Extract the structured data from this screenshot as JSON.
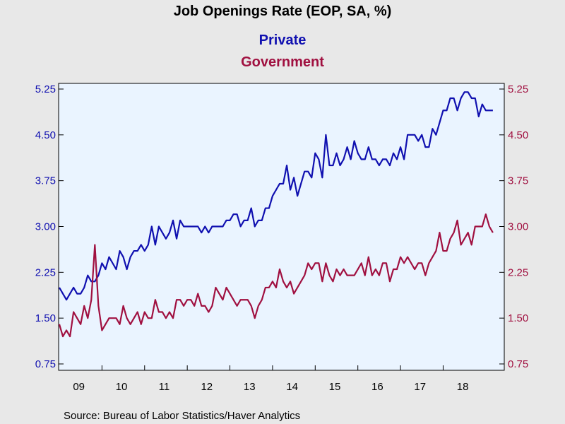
{
  "chart_data": {
    "type": "line",
    "title": "Job Openings Rate (EOP, SA, %)",
    "source": "Source:  Bureau of Labor Statistics/Haver Analytics",
    "x_start": "2009-01",
    "x_end": "2019-06",
    "x_frequency": "monthly",
    "x_tick_labels": [
      "09",
      "10",
      "11",
      "12",
      "13",
      "14",
      "15",
      "16",
      "17",
      "18"
    ],
    "ylim": [
      0.75,
      5.25
    ],
    "y_ticks": [
      "0.75",
      "1.50",
      "2.25",
      "3.00",
      "3.75",
      "4.50",
      "5.25"
    ],
    "y_axes": "left and right, identical scale",
    "grid": false,
    "legend_placement": "top-center",
    "plot_background": "#eaf4ff",
    "series": [
      {
        "name": "Private",
        "color": "#1010b0",
        "values": [
          2.0,
          1.9,
          1.8,
          1.9,
          2.0,
          1.9,
          1.9,
          2.0,
          2.2,
          2.1,
          2.1,
          2.2,
          2.4,
          2.3,
          2.5,
          2.4,
          2.3,
          2.6,
          2.5,
          2.3,
          2.5,
          2.6,
          2.6,
          2.7,
          2.6,
          2.7,
          3.0,
          2.7,
          3.0,
          2.9,
          2.8,
          2.9,
          3.1,
          2.8,
          3.1,
          3.0,
          3.0,
          3.0,
          3.0,
          3.0,
          2.9,
          3.0,
          2.9,
          3.0,
          3.0,
          3.0,
          3.0,
          3.1,
          3.1,
          3.2,
          3.2,
          3.0,
          3.1,
          3.1,
          3.3,
          3.0,
          3.1,
          3.1,
          3.3,
          3.3,
          3.5,
          3.6,
          3.7,
          3.7,
          4.0,
          3.6,
          3.8,
          3.5,
          3.7,
          3.9,
          3.9,
          3.8,
          4.2,
          4.1,
          3.8,
          4.5,
          4.0,
          4.0,
          4.2,
          4.0,
          4.1,
          4.3,
          4.1,
          4.4,
          4.2,
          4.1,
          4.1,
          4.3,
          4.1,
          4.1,
          4.0,
          4.1,
          4.1,
          4.0,
          4.2,
          4.1,
          4.3,
          4.1,
          4.5,
          4.5,
          4.5,
          4.4,
          4.5,
          4.3,
          4.3,
          4.6,
          4.5,
          4.7,
          4.9,
          4.9,
          5.1,
          5.1,
          4.9,
          5.1,
          5.2,
          5.2,
          5.1,
          5.1,
          4.8,
          5.0,
          4.9,
          4.9,
          4.9
        ]
      },
      {
        "name": "Government",
        "color": "#a01040",
        "values": [
          1.4,
          1.2,
          1.3,
          1.2,
          1.6,
          1.5,
          1.4,
          1.7,
          1.5,
          1.8,
          2.7,
          1.7,
          1.3,
          1.4,
          1.5,
          1.5,
          1.5,
          1.4,
          1.7,
          1.5,
          1.4,
          1.5,
          1.6,
          1.4,
          1.6,
          1.5,
          1.5,
          1.8,
          1.6,
          1.6,
          1.5,
          1.6,
          1.5,
          1.8,
          1.8,
          1.7,
          1.8,
          1.8,
          1.7,
          1.9,
          1.7,
          1.7,
          1.6,
          1.7,
          2.0,
          1.9,
          1.8,
          2.0,
          1.9,
          1.8,
          1.7,
          1.8,
          1.8,
          1.8,
          1.7,
          1.5,
          1.7,
          1.8,
          2.0,
          2.0,
          2.1,
          2.0,
          2.3,
          2.1,
          2.0,
          2.1,
          1.9,
          2.0,
          2.1,
          2.2,
          2.4,
          2.3,
          2.4,
          2.4,
          2.1,
          2.4,
          2.2,
          2.1,
          2.3,
          2.2,
          2.3,
          2.2,
          2.2,
          2.2,
          2.3,
          2.4,
          2.2,
          2.5,
          2.2,
          2.3,
          2.2,
          2.4,
          2.4,
          2.1,
          2.3,
          2.3,
          2.5,
          2.4,
          2.5,
          2.4,
          2.3,
          2.4,
          2.4,
          2.2,
          2.4,
          2.5,
          2.6,
          2.9,
          2.6,
          2.6,
          2.8,
          2.9,
          3.1,
          2.7,
          2.8,
          2.9,
          2.7,
          3.0,
          3.0,
          3.0,
          3.2,
          3.0,
          2.9
        ]
      }
    ]
  }
}
